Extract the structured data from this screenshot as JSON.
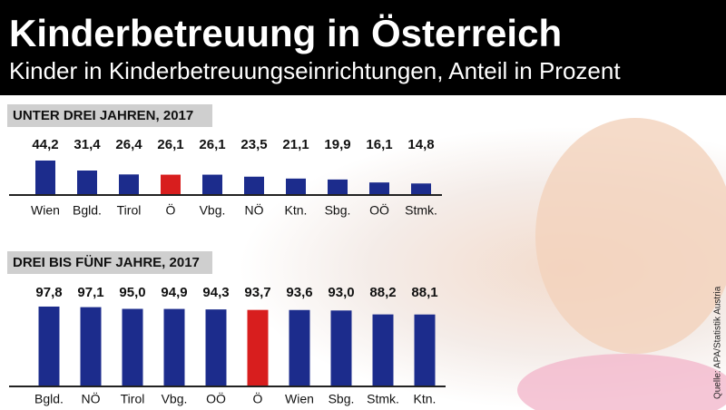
{
  "header": {
    "title": "Kinderbetreuung in Österreich",
    "subtitle": "Kinder in Kinderbetreuungseinrichtungen, Anteil in Prozent"
  },
  "source": "Quelle: APA/Statistik Austria",
  "chart_data": [
    {
      "type": "bar",
      "title": "UNTER DREI JAHREN, 2017",
      "categories": [
        "Wien",
        "Bgld.",
        "Tirol",
        "Ö",
        "Vbg.",
        "NÖ",
        "Ktn.",
        "Sbg.",
        "OÖ",
        "Stmk."
      ],
      "values": [
        44.2,
        31.4,
        26.4,
        26.1,
        26.1,
        23.5,
        21.1,
        19.9,
        16.1,
        14.8
      ],
      "value_labels": [
        "44,2",
        "31,4",
        "26,4",
        "26,1",
        "26,1",
        "23,5",
        "21,1",
        "19,9",
        "16,1",
        "14,8"
      ],
      "colors": [
        "#1c2c8c",
        "#1c2c8c",
        "#1c2c8c",
        "#d81e1e",
        "#1c2c8c",
        "#1c2c8c",
        "#1c2c8c",
        "#1c2c8c",
        "#1c2c8c",
        "#1c2c8c"
      ]
    },
    {
      "type": "bar",
      "title": "DREI BIS FÜNF JAHRE, 2017",
      "categories": [
        "Bgld.",
        "NÖ",
        "Tirol",
        "Vbg.",
        "OÖ",
        "Ö",
        "Wien",
        "Sbg.",
        "Stmk.",
        "Ktn."
      ],
      "values": [
        97.8,
        97.1,
        95.0,
        94.9,
        94.3,
        93.7,
        93.6,
        93.0,
        88.2,
        88.1
      ],
      "value_labels": [
        "97,8",
        "97,1",
        "95,0",
        "94,9",
        "94,3",
        "93,7",
        "93,6",
        "93,0",
        "88,2",
        "88,1"
      ],
      "colors": [
        "#1c2c8c",
        "#1c2c8c",
        "#1c2c8c",
        "#1c2c8c",
        "#1c2c8c",
        "#d81e1e",
        "#1c2c8c",
        "#1c2c8c",
        "#1c2c8c",
        "#1c2c8c"
      ]
    }
  ]
}
